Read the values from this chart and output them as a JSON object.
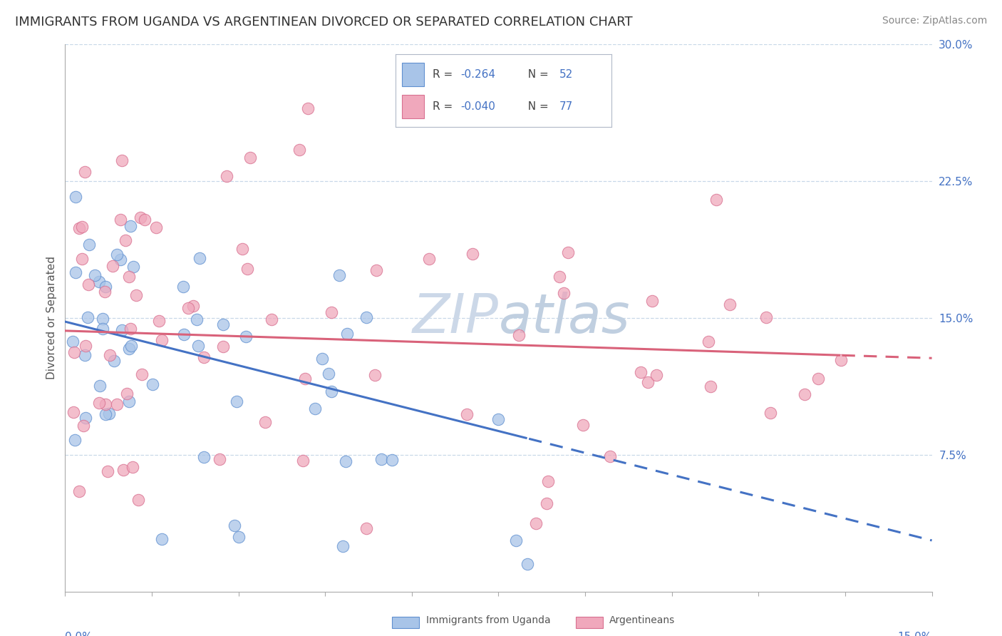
{
  "title": "IMMIGRANTS FROM UGANDA VS ARGENTINEAN DIVORCED OR SEPARATED CORRELATION CHART",
  "source": "Source: ZipAtlas.com",
  "ylabel_label": "Divorced or Separated",
  "right_ytick_labels": [
    "7.5%",
    "15.0%",
    "22.5%",
    "30.0%"
  ],
  "right_ytick_values": [
    0.075,
    0.15,
    0.225,
    0.3
  ],
  "xmin": 0.0,
  "xmax": 0.15,
  "ymin": 0.0,
  "ymax": 0.3,
  "blue_line_color": "#4472c4",
  "pink_line_color": "#d9627a",
  "dot_blue_facecolor": "#a8c4e8",
  "dot_blue_edgecolor": "#6090d0",
  "dot_pink_facecolor": "#f0a8bc",
  "dot_pink_edgecolor": "#d87090",
  "grid_color": "#c8d8e8",
  "background_color": "#ffffff",
  "title_fontsize": 13,
  "source_fontsize": 10,
  "watermark_color": "#dce8f0",
  "watermark_fontsize": 55,
  "legend_r_color": "-0.264",
  "legend_n_blue": "52",
  "legend_r_pink": "-0.040",
  "legend_n_pink": "77",
  "xlabel_color": "#4472c4",
  "right_tick_color": "#4472c4"
}
